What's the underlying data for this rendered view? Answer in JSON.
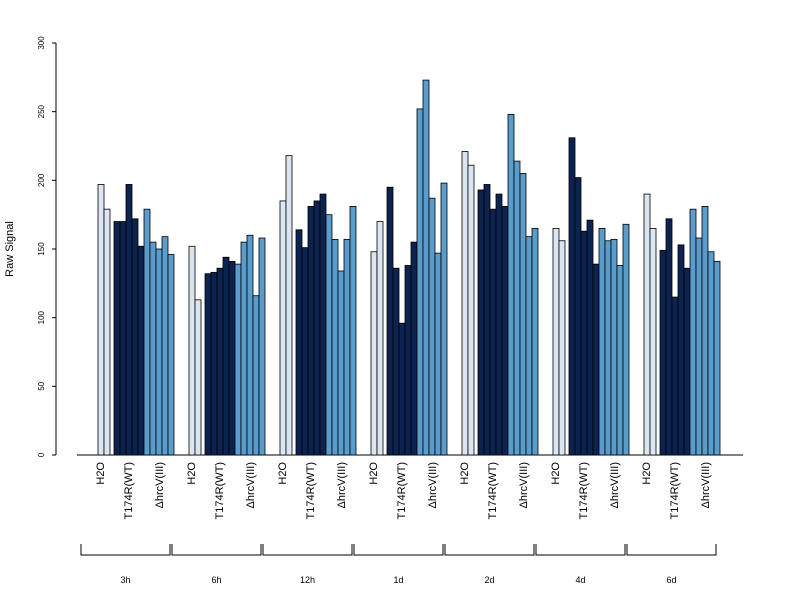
{
  "chart_data": {
    "type": "bar",
    "title": "",
    "xlabel": "",
    "ylabel": "Raw Signal",
    "ylim": [
      0,
      300
    ],
    "yticks": [
      0,
      50,
      100,
      150,
      200,
      250,
      300
    ],
    "grid": false,
    "legend": "none",
    "time_points": [
      "3h",
      "6h",
      "12h",
      "1d",
      "2d",
      "4d",
      "6d"
    ],
    "treatments": [
      {
        "name": "H2O",
        "label": "H2O",
        "color": "#dce6f2"
      },
      {
        "name": "T174R(WT)",
        "label": "T174R(WT)",
        "color": "#0c2350"
      },
      {
        "name": "ΔhrcV(III)",
        "label": "ΔhrcV(III)",
        "color": "#5a9ccc"
      }
    ],
    "groups": [
      {
        "time": "3h",
        "values": {
          "H2O": [
            197,
            179
          ],
          "T174R(WT)": [
            170,
            170,
            197,
            172,
            152
          ],
          "ΔhrcV(III)": [
            179,
            155,
            150,
            159,
            146
          ]
        }
      },
      {
        "time": "6h",
        "values": {
          "H2O": [
            152,
            113
          ],
          "T174R(WT)": [
            132,
            133,
            136,
            144,
            141
          ],
          "ΔhrcV(III)": [
            139,
            155,
            160,
            116,
            158
          ]
        }
      },
      {
        "time": "12h",
        "values": {
          "H2O": [
            185,
            218
          ],
          "T174R(WT)": [
            164,
            151,
            181,
            185,
            190
          ],
          "ΔhrcV(III)": [
            175,
            157,
            134,
            157,
            181
          ]
        }
      },
      {
        "time": "1d",
        "values": {
          "H2O": [
            148,
            170
          ],
          "T174R(WT)": [
            195,
            136,
            96,
            138,
            155
          ],
          "ΔhrcV(III)": [
            252,
            273,
            187,
            147,
            198
          ]
        }
      },
      {
        "time": "2d",
        "values": {
          "H2O": [
            221,
            211
          ],
          "T174R(WT)": [
            193,
            197,
            179,
            190,
            181
          ],
          "ΔhrcV(III)": [
            248,
            214,
            205,
            159,
            165
          ]
        }
      },
      {
        "time": "4d",
        "values": {
          "H2O": [
            165,
            156
          ],
          "T174R(WT)": [
            231,
            202,
            163,
            171,
            139
          ],
          "ΔhrcV(III)": [
            165,
            156,
            157,
            138,
            168
          ]
        }
      },
      {
        "time": "6d",
        "values": {
          "H2O": [
            190,
            165
          ],
          "T174R(WT)": [
            149,
            172,
            115,
            153,
            136
          ],
          "ΔhrcV(III)": [
            179,
            158,
            181,
            148,
            141
          ]
        }
      }
    ]
  }
}
